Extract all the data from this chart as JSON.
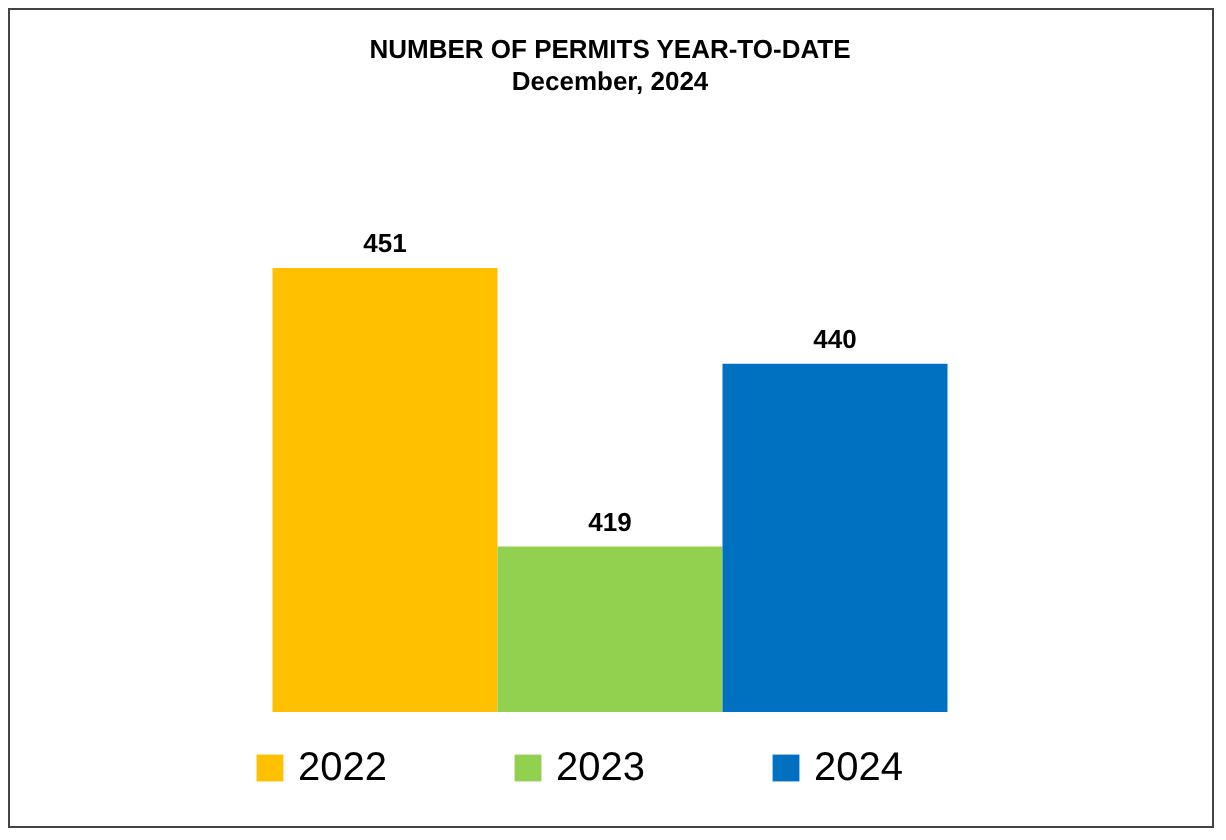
{
  "chart_data": {
    "type": "bar",
    "title": "NUMBER OF PERMITS YEAR-TO-DATE",
    "subtitle": "December, 2024",
    "categories": [
      null
    ],
    "series": [
      {
        "name": "2022",
        "color": "#ffc000",
        "values": [
          451
        ]
      },
      {
        "name": "2023",
        "color": "#92d050",
        "values": [
          419
        ]
      },
      {
        "name": "2024",
        "color": "#0070c0",
        "values": [
          440
        ]
      }
    ],
    "ylim": [
      400,
      451
    ],
    "data_labels": true,
    "tick_labels": false,
    "legend": "bottom"
  }
}
